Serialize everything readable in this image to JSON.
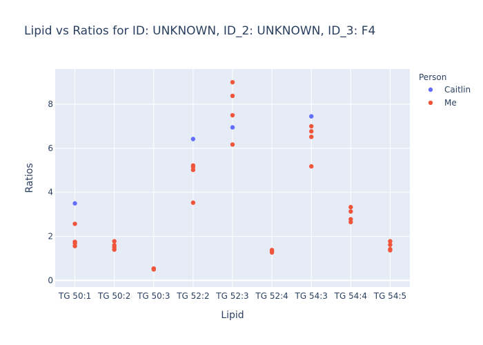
{
  "chart_data": {
    "type": "scatter",
    "title": "Lipid vs Ratios for ID: UNKNOWN, ID_2: UNKNOWN, ID_3: F4",
    "xlabel": "Lipid",
    "ylabel": "Ratios",
    "categories": [
      "TG 50:1",
      "TG 50:2",
      "TG 50:3",
      "TG 52:2",
      "TG 52:3",
      "TG 52:4",
      "TG 54:3",
      "TG 54:4",
      "TG 54:5"
    ],
    "ylim": [
      -0.3,
      9.6
    ],
    "yticks": [
      0,
      2,
      4,
      6,
      8
    ],
    "grid": true,
    "legend": {
      "title": "Person",
      "position": "right"
    },
    "series": [
      {
        "name": "Caitlin",
        "color": "#636efa",
        "points": [
          {
            "x": "TG 50:1",
            "y": 3.5
          },
          {
            "x": "TG 52:2",
            "y": 6.42
          },
          {
            "x": "TG 52:3",
            "y": 6.95
          },
          {
            "x": "TG 54:3",
            "y": 7.45
          }
        ]
      },
      {
        "name": "Me",
        "color": "#ef553b",
        "points": [
          {
            "x": "TG 50:1",
            "y": 2.57
          },
          {
            "x": "TG 50:1",
            "y": 1.75
          },
          {
            "x": "TG 50:1",
            "y": 1.68
          },
          {
            "x": "TG 50:1",
            "y": 1.56
          },
          {
            "x": "TG 50:2",
            "y": 1.78
          },
          {
            "x": "TG 50:2",
            "y": 1.6
          },
          {
            "x": "TG 50:2",
            "y": 1.5
          },
          {
            "x": "TG 50:2",
            "y": 1.4
          },
          {
            "x": "TG 50:3",
            "y": 0.54
          },
          {
            "x": "TG 50:3",
            "y": 0.5
          },
          {
            "x": "TG 52:2",
            "y": 5.22
          },
          {
            "x": "TG 52:2",
            "y": 5.15
          },
          {
            "x": "TG 52:2",
            "y": 5.02
          },
          {
            "x": "TG 52:2",
            "y": 3.53
          },
          {
            "x": "TG 52:3",
            "y": 9.0
          },
          {
            "x": "TG 52:3",
            "y": 8.38
          },
          {
            "x": "TG 52:3",
            "y": 7.5
          },
          {
            "x": "TG 52:3",
            "y": 6.17
          },
          {
            "x": "TG 52:4",
            "y": 1.38
          },
          {
            "x": "TG 52:4",
            "y": 1.33
          },
          {
            "x": "TG 52:4",
            "y": 1.27
          },
          {
            "x": "TG 54:3",
            "y": 7.0
          },
          {
            "x": "TG 54:3",
            "y": 6.77
          },
          {
            "x": "TG 54:3",
            "y": 6.52
          },
          {
            "x": "TG 54:3",
            "y": 5.18
          },
          {
            "x": "TG 54:4",
            "y": 3.33
          },
          {
            "x": "TG 54:4",
            "y": 3.13
          },
          {
            "x": "TG 54:4",
            "y": 2.78
          },
          {
            "x": "TG 54:4",
            "y": 2.65
          },
          {
            "x": "TG 54:5",
            "y": 1.78
          },
          {
            "x": "TG 54:5",
            "y": 1.62
          },
          {
            "x": "TG 54:5",
            "y": 1.42
          },
          {
            "x": "TG 54:5",
            "y": 1.37
          }
        ]
      }
    ]
  }
}
